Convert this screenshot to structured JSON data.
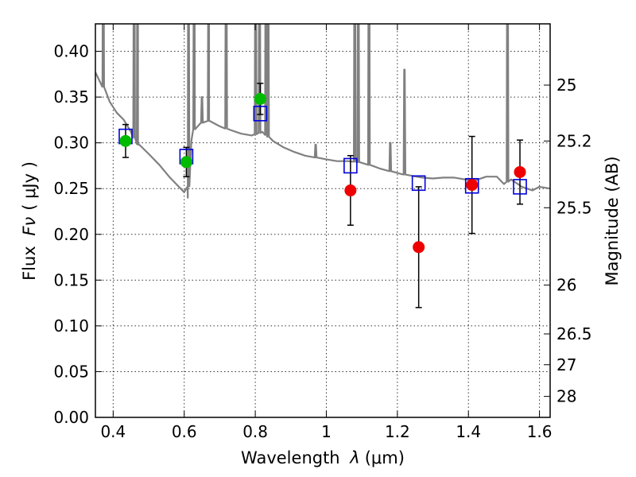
{
  "chart_data": {
    "type": "scatter",
    "xlabel_text": "Wavelength ",
    "xlabel_symbol": "λ",
    "xlabel_unit": "(μm)",
    "ylabel_text": "Flux ",
    "ylabel_symbol": "Fν",
    "ylabel_unit": "( μJy )",
    "y2label": "Magnitude (AB)",
    "xlim": [
      0.35,
      1.63
    ],
    "ylim": [
      0.0,
      0.43
    ],
    "x_ticks": [
      0.4,
      0.6,
      0.8,
      1.0,
      1.2,
      1.4,
      1.6
    ],
    "x_tick_labels": [
      "0.4",
      "0.6",
      "0.8",
      "1",
      "1.2",
      "1.4",
      "1.6"
    ],
    "y_ticks": [
      0.0,
      0.05,
      0.1,
      0.15,
      0.2,
      0.25,
      0.3,
      0.35,
      0.4
    ],
    "y_tick_labels": [
      "0.00",
      "0.05",
      "0.10",
      "0.15",
      "0.20",
      "0.25",
      "0.30",
      "0.35",
      "0.40"
    ],
    "y2_ticks": [
      25,
      25.2,
      25.5,
      26,
      26.5,
      27,
      28
    ],
    "y2_tick_labels": [
      "25",
      "25.2",
      "25.5",
      "26",
      "26.5",
      "27",
      "28"
    ],
    "grid": true,
    "colors": {
      "model": "#808080",
      "optical": "#00bb00",
      "nir": "#ee0000",
      "model_box": "#0000dd",
      "errorbar": "#000000"
    },
    "model_spectrum": {
      "continuum": [
        [
          0.35,
          0.377
        ],
        [
          0.37,
          0.363
        ],
        [
          0.39,
          0.345
        ],
        [
          0.41,
          0.333
        ],
        [
          0.43,
          0.325
        ],
        [
          0.45,
          0.312
        ],
        [
          0.47,
          0.298
        ],
        [
          0.5,
          0.288
        ],
        [
          0.53,
          0.276
        ],
        [
          0.56,
          0.262
        ],
        [
          0.58,
          0.254
        ],
        [
          0.6,
          0.246
        ],
        [
          0.61,
          0.24
        ],
        [
          0.62,
          0.302
        ],
        [
          0.63,
          0.318
        ],
        [
          0.65,
          0.322
        ],
        [
          0.67,
          0.324
        ],
        [
          0.7,
          0.318
        ],
        [
          0.73,
          0.314
        ],
        [
          0.76,
          0.31
        ],
        [
          0.79,
          0.308
        ],
        [
          0.82,
          0.312
        ],
        [
          0.85,
          0.302
        ],
        [
          0.88,
          0.295
        ],
        [
          0.91,
          0.29
        ],
        [
          0.94,
          0.286
        ],
        [
          0.97,
          0.284
        ],
        [
          1.0,
          0.282
        ],
        [
          1.03,
          0.28
        ],
        [
          1.06,
          0.28
        ],
        [
          1.09,
          0.279
        ],
        [
          1.12,
          0.276
        ],
        [
          1.15,
          0.272
        ],
        [
          1.18,
          0.269
        ],
        [
          1.21,
          0.266
        ],
        [
          1.24,
          0.264
        ],
        [
          1.27,
          0.262
        ],
        [
          1.3,
          0.261
        ],
        [
          1.33,
          0.262
        ],
        [
          1.36,
          0.262
        ],
        [
          1.39,
          0.26
        ],
        [
          1.42,
          0.259
        ],
        [
          1.45,
          0.263
        ],
        [
          1.48,
          0.263
        ],
        [
          1.5,
          0.255
        ],
        [
          1.52,
          0.26
        ],
        [
          1.55,
          0.252
        ],
        [
          1.58,
          0.248
        ],
        [
          1.6,
          0.252
        ],
        [
          1.63,
          0.25
        ]
      ],
      "emission_lines": [
        [
          0.372,
          0.55
        ],
        [
          0.459,
          0.55
        ],
        [
          0.469,
          0.55
        ],
        [
          0.612,
          0.55
        ],
        [
          0.628,
          0.55
        ],
        [
          0.65,
          0.35
        ],
        [
          0.669,
          0.55
        ],
        [
          0.718,
          0.55
        ],
        [
          0.801,
          0.55
        ],
        [
          0.812,
          0.55
        ],
        [
          0.83,
          0.55
        ],
        [
          0.836,
          0.55
        ],
        [
          0.97,
          0.298
        ],
        [
          1.08,
          0.55
        ],
        [
          1.09,
          0.55
        ],
        [
          1.12,
          0.55
        ],
        [
          1.18,
          0.3
        ],
        [
          1.22,
          0.38
        ],
        [
          1.51,
          0.55
        ]
      ]
    },
    "optical_points": [
      {
        "x": 0.435,
        "y": 0.302,
        "err": 0.018
      },
      {
        "x": 0.606,
        "y": 0.279,
        "err": 0.016
      },
      {
        "x": 0.814,
        "y": 0.348,
        "err": 0.017
      }
    ],
    "nir_points": [
      {
        "x": 1.068,
        "y": 0.248,
        "err": 0.038
      },
      {
        "x": 1.26,
        "y": 0.186,
        "err": 0.066
      },
      {
        "x": 1.41,
        "y": 0.254,
        "err": 0.053
      },
      {
        "x": 1.545,
        "y": 0.268,
        "err": 0.035
      }
    ],
    "model_boxes": [
      {
        "x": 0.435,
        "y": 0.307
      },
      {
        "x": 0.606,
        "y": 0.285
      },
      {
        "x": 0.814,
        "y": 0.332
      },
      {
        "x": 1.068,
        "y": 0.275
      },
      {
        "x": 1.26,
        "y": 0.256
      },
      {
        "x": 1.41,
        "y": 0.253
      },
      {
        "x": 1.545,
        "y": 0.252
      }
    ]
  }
}
